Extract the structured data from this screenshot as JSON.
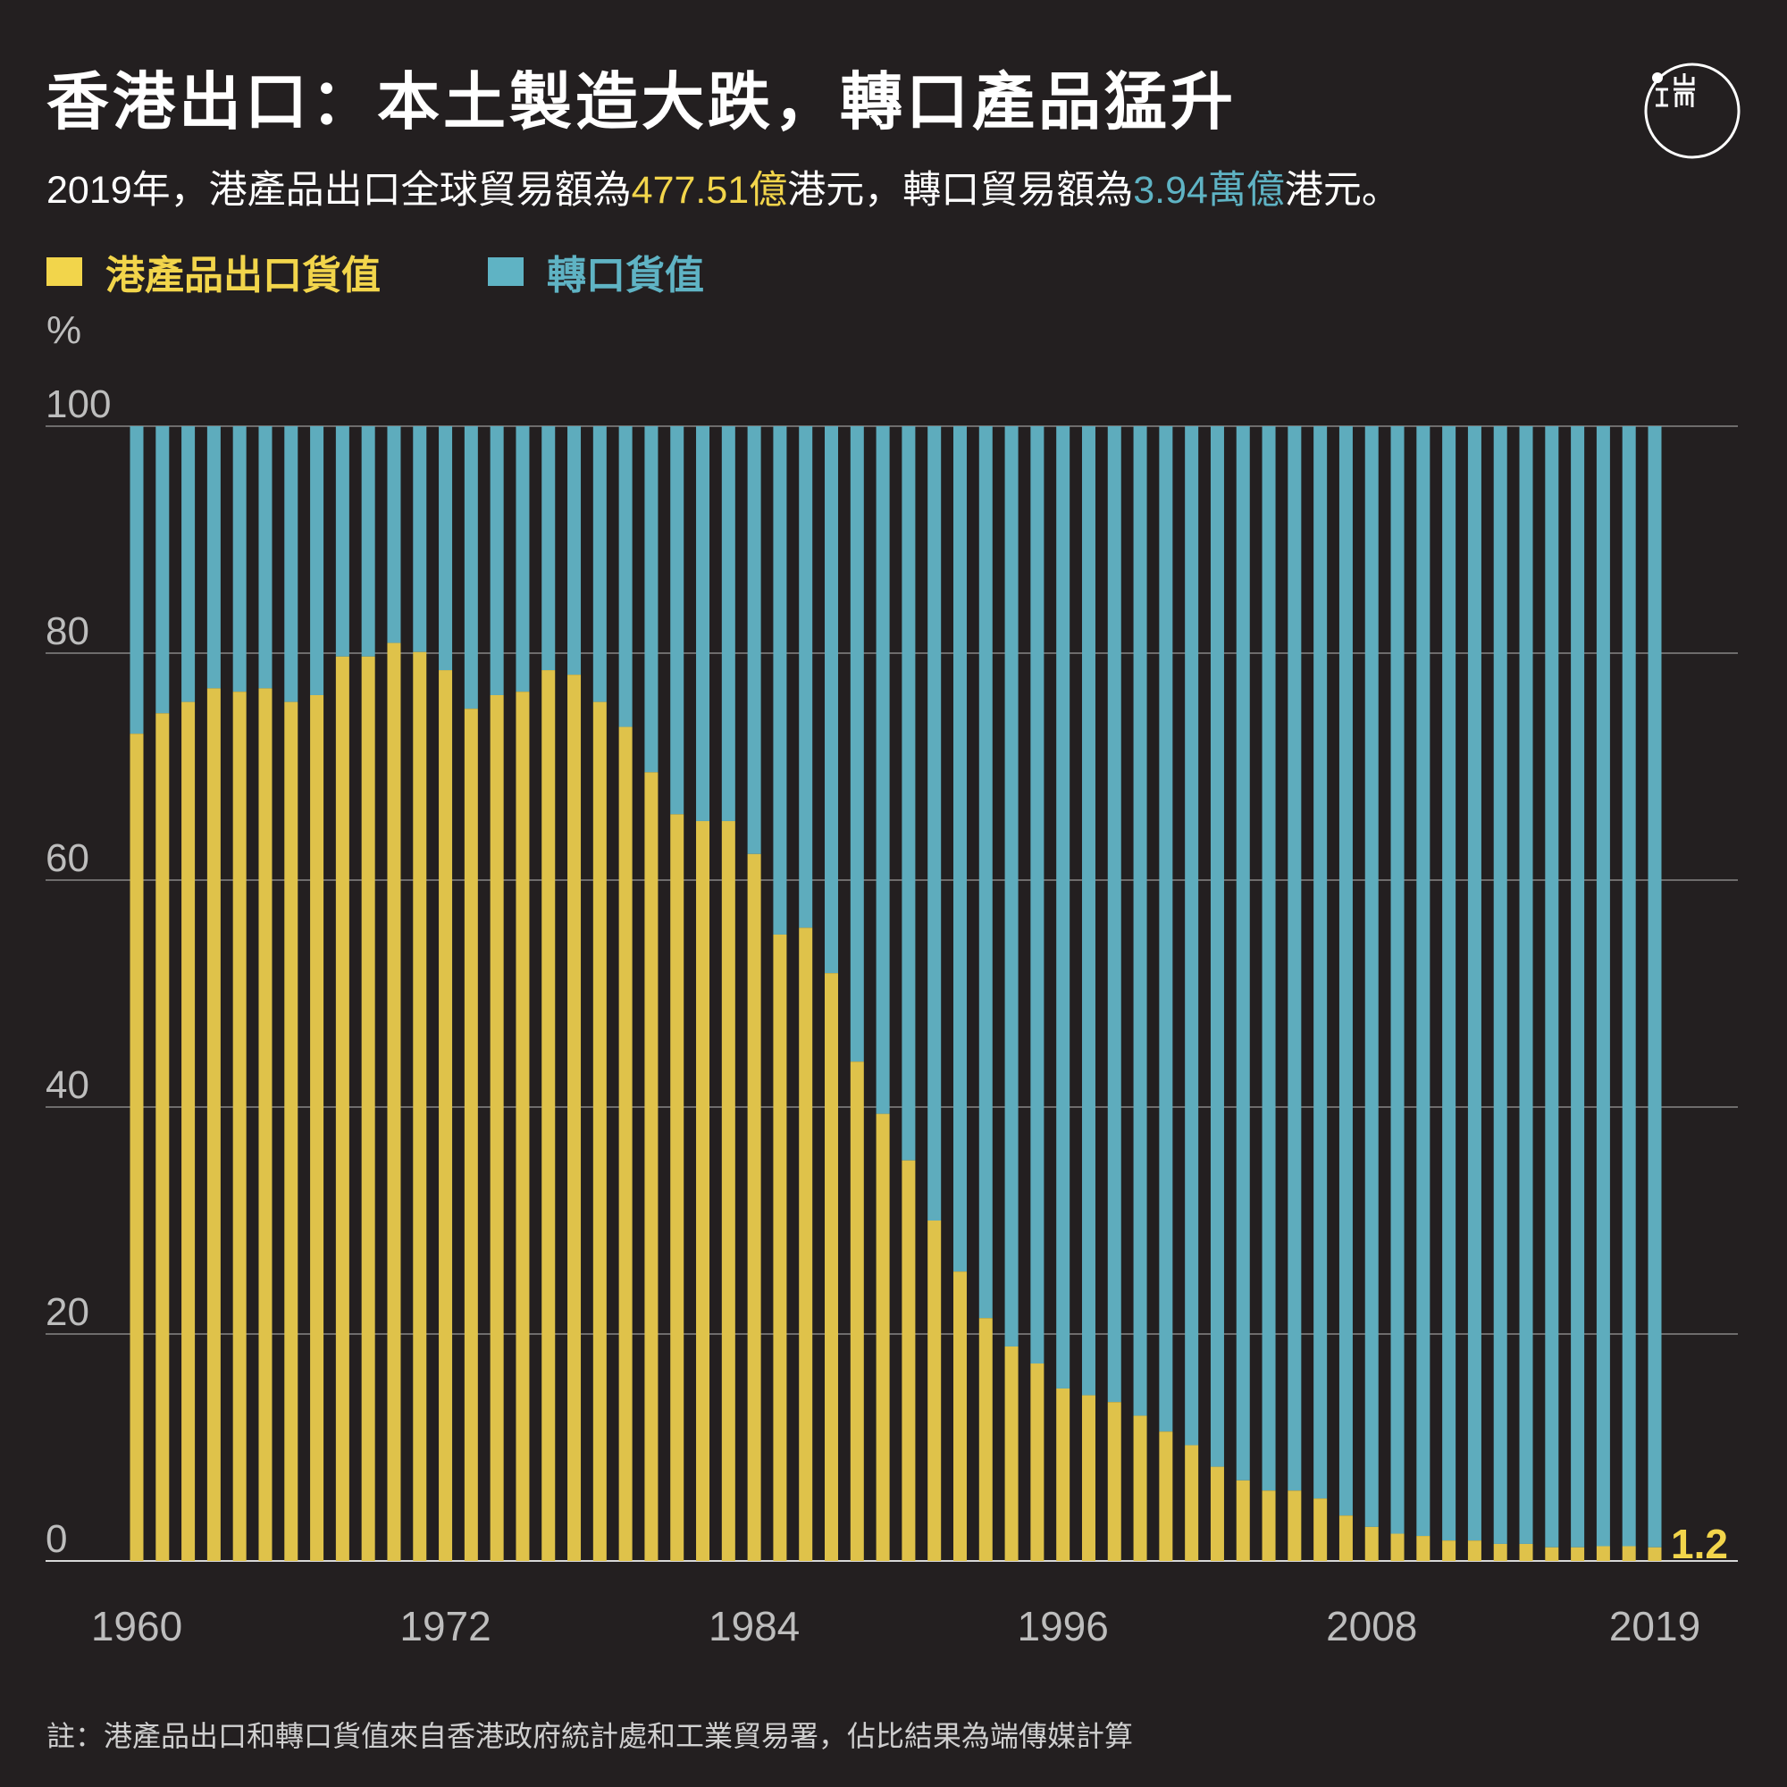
{
  "header": {
    "title": "香港出口：本土製造大跌，轉口產品猛升",
    "subtitle_parts": [
      "2019年，港產品出口全球貿易額為",
      "477.51億",
      "港元，轉口貿易額為",
      "3.94萬億",
      "港元。"
    ],
    "logo_text": "端"
  },
  "legend": [
    {
      "label": "港產品出口貨值",
      "color": "#f2d54b"
    },
    {
      "label": "轉口貨值",
      "color": "#5fb3c4"
    }
  ],
  "footnote": "註：港產品出口和轉口貨值來自香港政府統計處和工業貿易署，佔比結果為端傳媒計算",
  "chart_data": {
    "type": "bar",
    "stacked": true,
    "ylabel": "%",
    "ylim": [
      0,
      100
    ],
    "yticks": [
      "0",
      "20",
      "40",
      "60",
      "80",
      "100"
    ],
    "xtick_labels": [
      "1960",
      "1972",
      "1984",
      "1996",
      "2008",
      "2019"
    ],
    "grid": true,
    "annotation": "1.2",
    "categories": [
      1960,
      1961,
      1962,
      1963,
      1964,
      1965,
      1966,
      1967,
      1968,
      1969,
      1970,
      1971,
      1972,
      1973,
      1974,
      1975,
      1976,
      1977,
      1978,
      1979,
      1980,
      1981,
      1982,
      1983,
      1984,
      1985,
      1986,
      1987,
      1988,
      1989,
      1990,
      1991,
      1992,
      1993,
      1994,
      1995,
      1996,
      1997,
      1998,
      1999,
      2000,
      2001,
      2002,
      2003,
      2004,
      2005,
      2006,
      2007,
      2008,
      2009,
      2010,
      2011,
      2012,
      2013,
      2014,
      2015,
      2016,
      2017,
      2018,
      2019
    ],
    "series": [
      {
        "name": "港產品出口貨值",
        "color": "#dfc24a",
        "values": [
          72.9,
          74.7,
          75.7,
          76.9,
          76.6,
          76.9,
          75.7,
          76.3,
          79.7,
          79.7,
          80.9,
          80.1,
          78.5,
          75.1,
          76.3,
          76.6,
          78.5,
          78.1,
          75.7,
          73.5,
          69.5,
          65.8,
          65.2,
          65.2,
          62.3,
          55.2,
          55.8,
          51.8,
          44.0,
          39.4,
          35.3,
          30.0,
          25.5,
          21.4,
          18.9,
          17.4,
          15.2,
          14.6,
          14.0,
          12.8,
          11.4,
          10.2,
          8.3,
          7.1,
          6.2,
          6.2,
          5.5,
          4.0,
          3.0,
          2.4,
          2.2,
          1.8,
          1.8,
          1.5,
          1.5,
          1.2,
          1.2,
          1.3,
          1.3,
          1.2
        ]
      },
      {
        "name": "轉口貨值",
        "color": "#5eacbd",
        "values": "remainder to 100"
      }
    ]
  }
}
